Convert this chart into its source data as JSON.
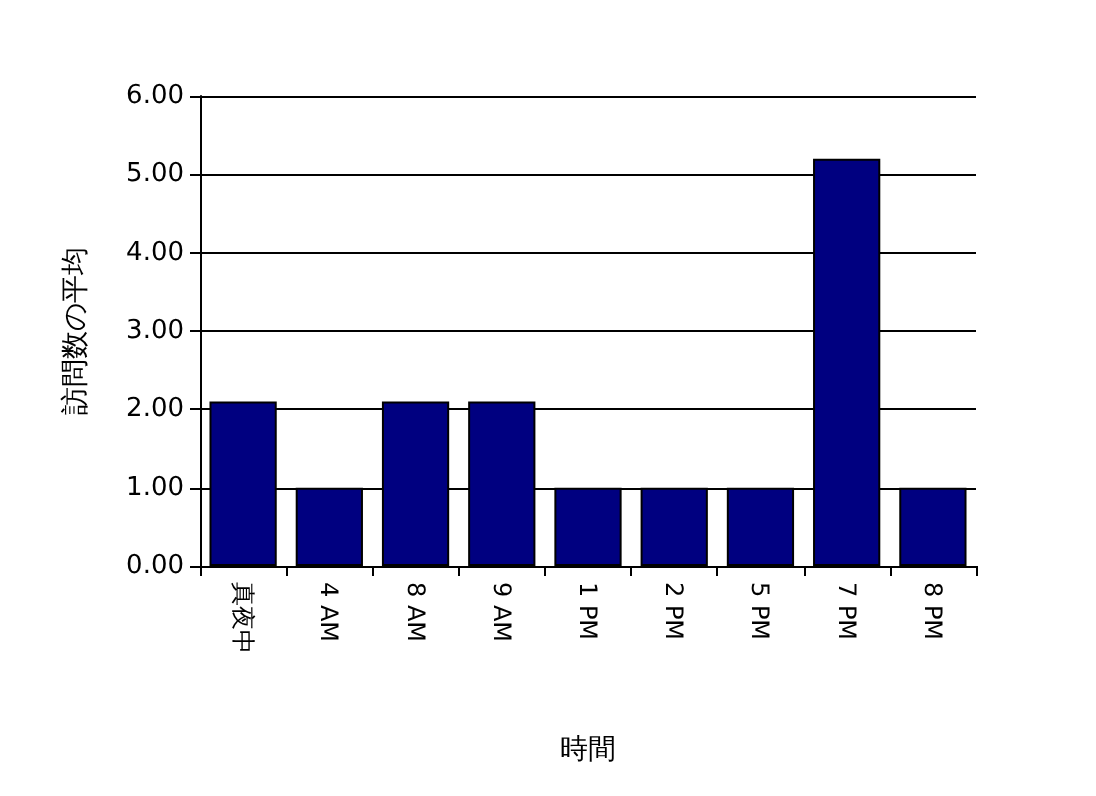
{
  "chart_data": {
    "type": "bar",
    "xlabel": "時間",
    "ylabel": "訪問数の平均",
    "categories": [
      "真夜中",
      "4 AM",
      "8 AM",
      "9 AM",
      "1 PM",
      "2 PM",
      "5 PM",
      "7 PM",
      "8 PM"
    ],
    "values": [
      2.1,
      1,
      2.1,
      2.1,
      1,
      1,
      1,
      5.2,
      1
    ],
    "color": "#000080",
    "ylim": [
      0,
      6
    ],
    "yticks": [
      {
        "value": 0,
        "label": "0.00"
      },
      {
        "value": 1,
        "label": "1.00"
      },
      {
        "value": 2,
        "label": "2.00"
      },
      {
        "value": 3,
        "label": "3.00"
      },
      {
        "value": 4,
        "label": "4.00"
      },
      {
        "value": 5,
        "label": "5.00"
      },
      {
        "value": 6,
        "label": "6.00"
      }
    ],
    "grid": "y"
  }
}
